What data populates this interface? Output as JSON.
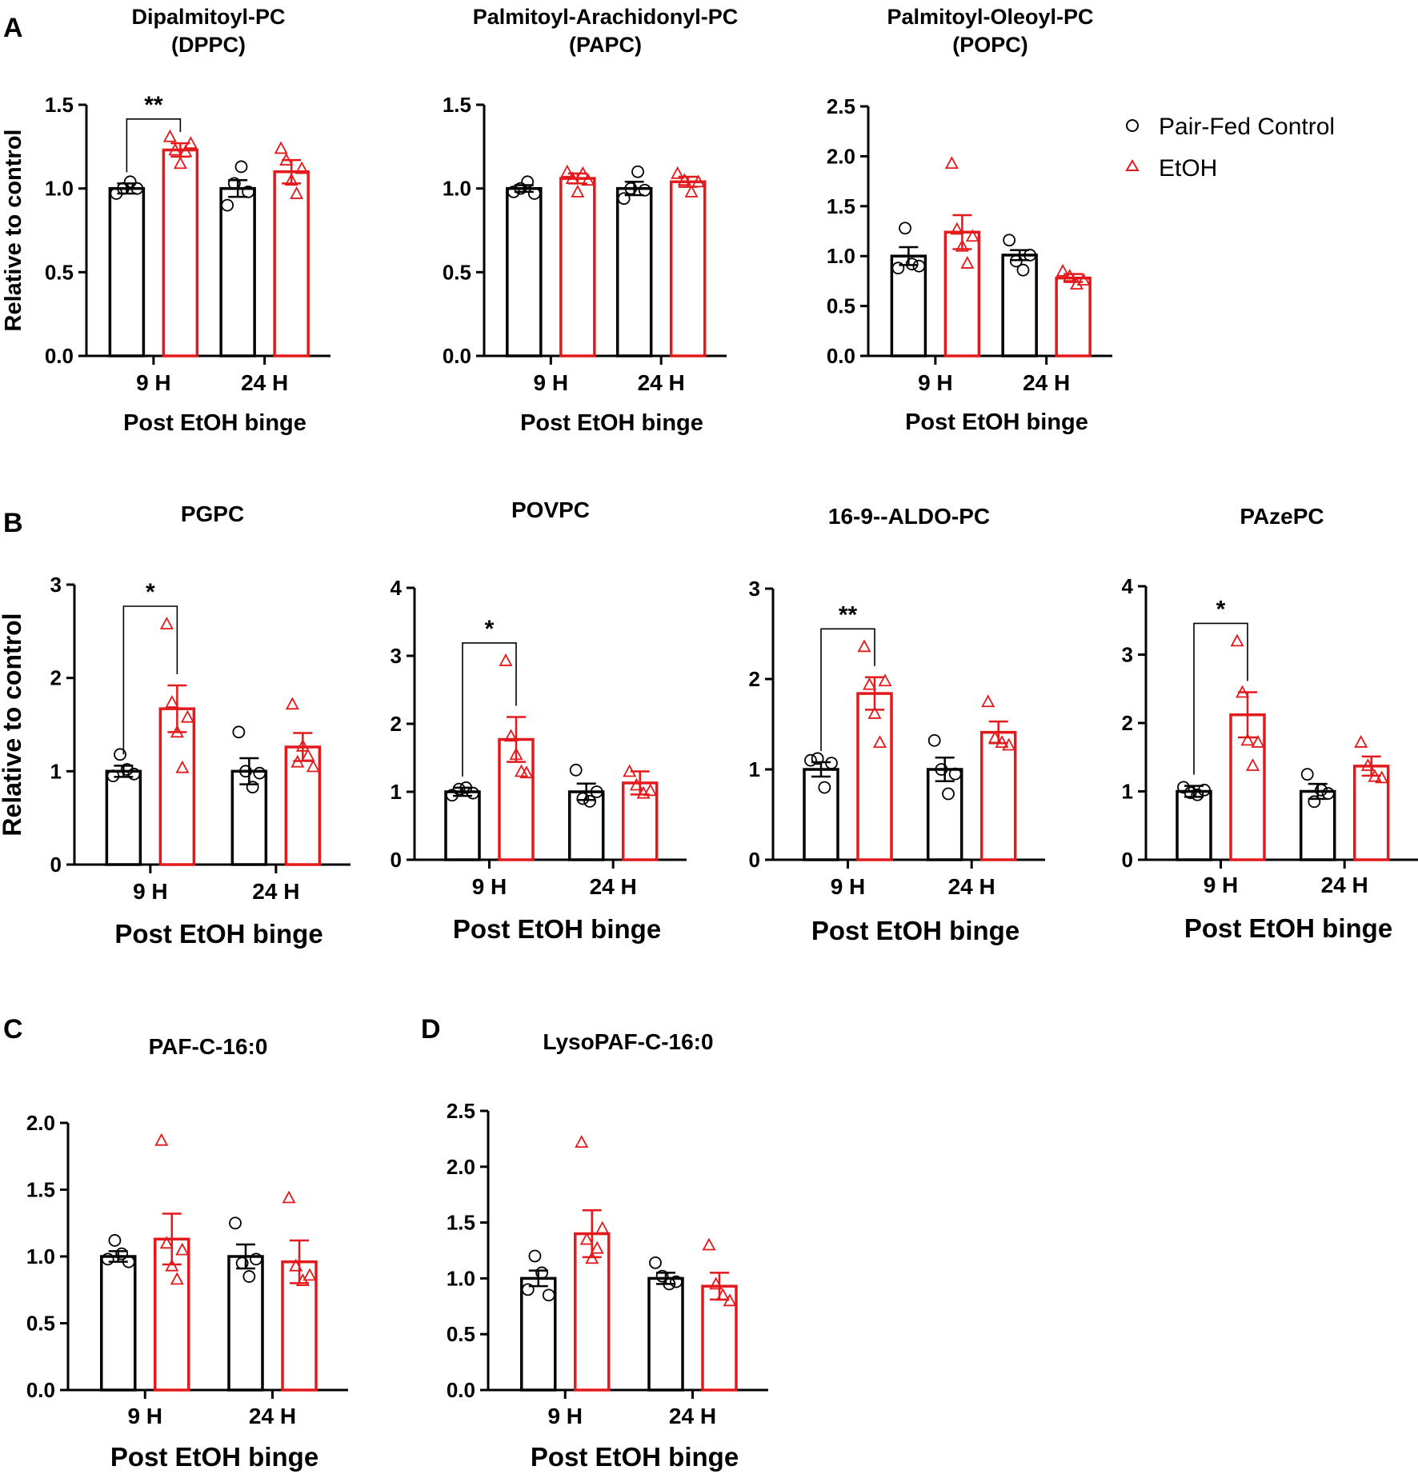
{
  "figure": {
    "panel_letters": [
      "A",
      "B",
      "C",
      "D"
    ],
    "legend": {
      "placement": "top-right",
      "control_label": "Pair-Fed Control",
      "etoh_label": "EtOH"
    }
  },
  "colors": {
    "control": "#000000",
    "etoh": "#e3191c"
  },
  "chart_data": [
    {
      "id": "dppc",
      "type": "bar",
      "panel": "A",
      "title": "Dipalmitoyl-PC",
      "subtitle": "(DPPC)",
      "xlabel": "Post EtOH binge",
      "ylabel": "Relative to control",
      "categories": [
        "9 H",
        "24 H"
      ],
      "ylim": [
        0,
        1.5
      ],
      "yticks": [
        0,
        0.5,
        1.0,
        1.5
      ],
      "ytick_labels": [
        "0.0",
        "0.5",
        "1.0",
        "1.5"
      ],
      "series": [
        {
          "name": "Pair-Fed Control",
          "values": [
            1.0,
            1.0
          ],
          "sem": [
            0.03,
            0.05
          ],
          "points": [
            [
              0.97,
              1.0,
              1.04,
              1.0
            ],
            [
              0.9,
              1.03,
              1.13,
              0.98
            ]
          ]
        },
        {
          "name": "EtOH",
          "values": [
            1.23,
            1.1
          ],
          "sem": [
            0.04,
            0.07
          ],
          "points": [
            [
              1.31,
              1.23,
              1.15,
              1.22,
              1.27
            ],
            [
              1.24,
              1.17,
              1.05,
              0.97,
              1.12
            ]
          ]
        }
      ],
      "annotations": [
        {
          "category": "9 H",
          "text": "**"
        }
      ]
    },
    {
      "id": "papc",
      "type": "bar",
      "panel": "A",
      "title": "Palmitoyl-Arachidonyl-PC",
      "subtitle": "(PAPC)",
      "xlabel": "Post EtOH binge",
      "ylabel": "",
      "categories": [
        "9 H",
        "24 H"
      ],
      "ylim": [
        0,
        1.5
      ],
      "yticks": [
        0,
        0.5,
        1.0,
        1.5
      ],
      "ytick_labels": [
        "0.0",
        "0.5",
        "1.0",
        "1.5"
      ],
      "series": [
        {
          "name": "Pair-Fed Control",
          "values": [
            1.0,
            1.0
          ],
          "sem": [
            0.02,
            0.04
          ],
          "points": [
            [
              0.98,
              1.0,
              1.04,
              0.97
            ],
            [
              0.94,
              1.0,
              1.1,
              0.99
            ]
          ]
        },
        {
          "name": "EtOH",
          "values": [
            1.06,
            1.04
          ],
          "sem": [
            0.03,
            0.03
          ],
          "points": [
            [
              1.1,
              1.06,
              0.98,
              1.09,
              1.05
            ],
            [
              1.09,
              1.05,
              0.98,
              1.04
            ]
          ]
        }
      ],
      "annotations": []
    },
    {
      "id": "popc",
      "type": "bar",
      "panel": "A",
      "title": "Palmitoyl-Oleoyl-PC",
      "subtitle": "(POPC)",
      "xlabel": "Post EtOH binge",
      "ylabel": "",
      "categories": [
        "9 H",
        "24 H"
      ],
      "ylim": [
        0,
        2.5
      ],
      "yticks": [
        0,
        0.5,
        1.0,
        1.5,
        2.0,
        2.5
      ],
      "ytick_labels": [
        "0.0",
        "0.5",
        "1.0",
        "1.5",
        "2.0",
        "2.5"
      ],
      "series": [
        {
          "name": "Pair-Fed Control",
          "values": [
            1.0,
            1.01
          ],
          "sem": [
            0.09,
            0.05
          ],
          "points": [
            [
              0.88,
              1.28,
              0.92,
              0.9
            ],
            [
              1.16,
              0.95,
              0.86,
              1.01
            ]
          ]
        },
        {
          "name": "EtOH",
          "values": [
            1.24,
            0.78
          ],
          "sem": [
            0.17,
            0.04
          ],
          "points": [
            [
              1.93,
              1.27,
              1.1,
              0.93,
              1.2
            ],
            [
              0.85,
              0.8,
              0.72,
              0.76
            ]
          ]
        }
      ],
      "annotations": []
    },
    {
      "id": "pgpc",
      "type": "bar",
      "panel": "B",
      "title": "PGPC",
      "subtitle": "",
      "xlabel": "Post EtOH binge",
      "ylabel": "Relative to control",
      "categories": [
        "9 H",
        "24 H"
      ],
      "ylim": [
        0,
        3
      ],
      "yticks": [
        0,
        1,
        2,
        3
      ],
      "ytick_labels": [
        "0",
        "1",
        "2",
        "3"
      ],
      "series": [
        {
          "name": "Pair-Fed Control",
          "values": [
            1.0,
            1.0
          ],
          "sem": [
            0.06,
            0.14
          ],
          "points": [
            [
              0.95,
              1.18,
              1.02,
              0.97
            ],
            [
              1.42,
              1.0,
              0.83,
              0.98
            ]
          ]
        },
        {
          "name": "EtOH",
          "values": [
            1.67,
            1.26
          ],
          "sem": [
            0.25,
            0.15
          ],
          "points": [
            [
              2.58,
              1.74,
              1.42,
              1.04,
              1.58
            ],
            [
              1.72,
              1.1,
              1.27,
              1.17,
              1.05
            ]
          ]
        }
      ],
      "annotations": [
        {
          "category": "9 H",
          "text": "*"
        }
      ]
    },
    {
      "id": "povpc",
      "type": "bar",
      "panel": "B",
      "title": "POVPC",
      "subtitle": "",
      "xlabel": "Post EtOH binge",
      "ylabel": "",
      "categories": [
        "9 H",
        "24 H"
      ],
      "ylim": [
        0,
        4
      ],
      "yticks": [
        0,
        1,
        2,
        3,
        4
      ],
      "ytick_labels": [
        "0",
        "1",
        "2",
        "3",
        "4"
      ],
      "series": [
        {
          "name": "Pair-Fed Control",
          "values": [
            1.0,
            1.0
          ],
          "sem": [
            0.06,
            0.12
          ],
          "points": [
            [
              0.95,
              1.04,
              1.06,
              0.98
            ],
            [
              1.32,
              0.9,
              0.86,
              1.0
            ]
          ]
        },
        {
          "name": "EtOH",
          "values": [
            1.77,
            1.13
          ],
          "sem": [
            0.33,
            0.17
          ],
          "points": [
            [
              2.93,
              1.82,
              1.55,
              1.3,
              1.28
            ],
            [
              1.3,
              1.1,
              0.98,
              1.02
            ]
          ]
        }
      ],
      "annotations": [
        {
          "category": "9 H",
          "text": "*"
        }
      ]
    },
    {
      "id": "aldo",
      "type": "bar",
      "panel": "B",
      "title": "16-9--ALDO-PC",
      "subtitle": "",
      "xlabel": "Post EtOH binge",
      "ylabel": "",
      "categories": [
        "9 H",
        "24 H"
      ],
      "ylim": [
        0,
        3
      ],
      "yticks": [
        0,
        1,
        2,
        3
      ],
      "ytick_labels": [
        "0",
        "1",
        "2",
        "3"
      ],
      "series": [
        {
          "name": "Pair-Fed Control",
          "values": [
            1.0,
            1.0
          ],
          "sem": [
            0.08,
            0.13
          ],
          "points": [
            [
              1.1,
              1.12,
              0.8,
              1.07
            ],
            [
              1.32,
              1.0,
              0.73,
              0.95
            ]
          ]
        },
        {
          "name": "EtOH",
          "values": [
            1.84,
            1.41
          ],
          "sem": [
            0.18,
            0.12
          ],
          "points": [
            [
              2.36,
              1.94,
              1.62,
              1.3,
              1.98
            ],
            [
              1.75,
              1.35,
              1.3,
              1.27
            ]
          ]
        }
      ],
      "annotations": [
        {
          "category": "9 H",
          "text": "**"
        }
      ]
    },
    {
      "id": "pazepc",
      "type": "bar",
      "panel": "B",
      "title": "PAzePC",
      "subtitle": "",
      "xlabel": "Post EtOH binge",
      "ylabel": "",
      "categories": [
        "9 H",
        "24 H"
      ],
      "ylim": [
        0,
        4
      ],
      "yticks": [
        0,
        1,
        2,
        3,
        4
      ],
      "ytick_labels": [
        "0",
        "1",
        "2",
        "3",
        "4"
      ],
      "series": [
        {
          "name": "Pair-Fed Control",
          "values": [
            1.0,
            1.0
          ],
          "sem": [
            0.08,
            0.11
          ],
          "points": [
            [
              1.06,
              0.98,
              0.95,
              1.02
            ],
            [
              1.25,
              0.85,
              1.02,
              0.97
            ]
          ]
        },
        {
          "name": "EtOH",
          "values": [
            2.12,
            1.37
          ],
          "sem": [
            0.33,
            0.14
          ],
          "points": [
            [
              3.2,
              2.45,
              1.75,
              1.38,
              1.72
            ],
            [
              1.72,
              1.38,
              1.22,
              1.2
            ]
          ]
        }
      ],
      "annotations": [
        {
          "category": "9 H",
          "text": "*"
        }
      ]
    },
    {
      "id": "paf",
      "type": "bar",
      "panel": "C",
      "title": "PAF-C-16:0",
      "subtitle": "",
      "xlabel": "Post EtOH binge",
      "ylabel": "",
      "categories": [
        "9 H",
        "24 H"
      ],
      "ylim": [
        0,
        2.0
      ],
      "yticks": [
        0,
        0.5,
        1.0,
        1.5,
        2.0
      ],
      "ytick_labels": [
        "0.0",
        "0.5",
        "1.0",
        "1.5",
        "2.0"
      ],
      "series": [
        {
          "name": "Pair-Fed Control",
          "values": [
            1.0,
            1.0
          ],
          "sem": [
            0.04,
            0.09
          ],
          "points": [
            [
              0.98,
              1.12,
              1.02,
              0.96
            ],
            [
              1.25,
              0.95,
              0.85,
              0.98
            ]
          ]
        },
        {
          "name": "EtOH",
          "values": [
            1.13,
            0.96
          ],
          "sem": [
            0.19,
            0.16
          ],
          "points": [
            [
              1.87,
              1.1,
              0.93,
              0.83,
              1.05
            ],
            [
              1.44,
              0.93,
              0.82,
              0.86
            ]
          ]
        }
      ],
      "annotations": []
    },
    {
      "id": "lysopaf",
      "type": "bar",
      "panel": "D",
      "title": "LysoPAF-C-16:0",
      "subtitle": "",
      "xlabel": "Post EtOH binge",
      "ylabel": "",
      "categories": [
        "9 H",
        "24 H"
      ],
      "ylim": [
        0,
        2.5
      ],
      "yticks": [
        0,
        0.5,
        1.0,
        1.5,
        2.0,
        2.5
      ],
      "ytick_labels": [
        "0.0",
        "0.5",
        "1.0",
        "1.5",
        "2.0",
        "2.5"
      ],
      "series": [
        {
          "name": "Pair-Fed Control",
          "values": [
            1.0,
            1.0
          ],
          "sem": [
            0.07,
            0.05
          ],
          "points": [
            [
              0.9,
              1.2,
              1.05,
              0.85
            ],
            [
              1.14,
              1.02,
              0.95,
              0.97
            ]
          ]
        },
        {
          "name": "EtOH",
          "values": [
            1.4,
            0.93
          ],
          "sem": [
            0.21,
            0.12
          ],
          "points": [
            [
              2.22,
              1.35,
              1.18,
              1.27,
              1.45
            ],
            [
              1.3,
              0.95,
              0.85,
              0.8
            ]
          ]
        }
      ],
      "annotations": []
    }
  ]
}
